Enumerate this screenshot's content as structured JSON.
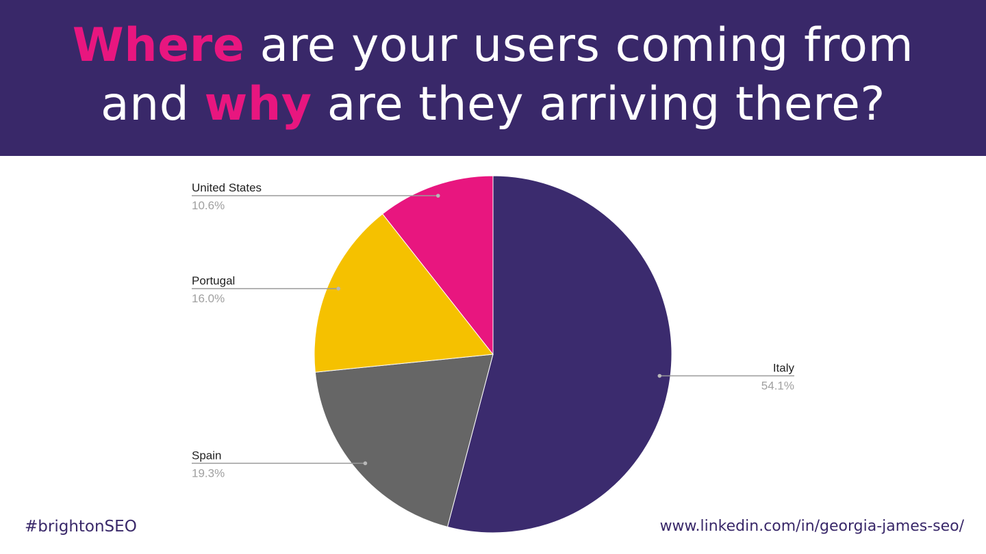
{
  "header": {
    "line1_accent": "Where",
    "line1_rest": " are your users coming from",
    "line2_start": "and ",
    "line2_accent": "why",
    "line2_rest": " are they arriving there?"
  },
  "colors": {
    "brand_purple": "#392869",
    "accent_pink": "#e8167f"
  },
  "chart_data": {
    "type": "pie",
    "title": "",
    "categories": [
      "Italy",
      "Spain",
      "Portugal",
      "United States"
    ],
    "values": [
      54.1,
      19.3,
      16.0,
      10.6
    ],
    "value_labels": [
      "54.1%",
      "19.3%",
      "16.0%",
      "10.6%"
    ],
    "colors": [
      "#3b2b6e",
      "#666666",
      "#f5c100",
      "#e8167f"
    ],
    "start_angle_deg": 0,
    "direction": "clockwise",
    "legend": "none",
    "data_labels": "outside-with-leader-lines"
  },
  "footer": {
    "hashtag": "#brightonSEO",
    "link": "www.linkedin.com/in/georgia-james-seo/"
  }
}
